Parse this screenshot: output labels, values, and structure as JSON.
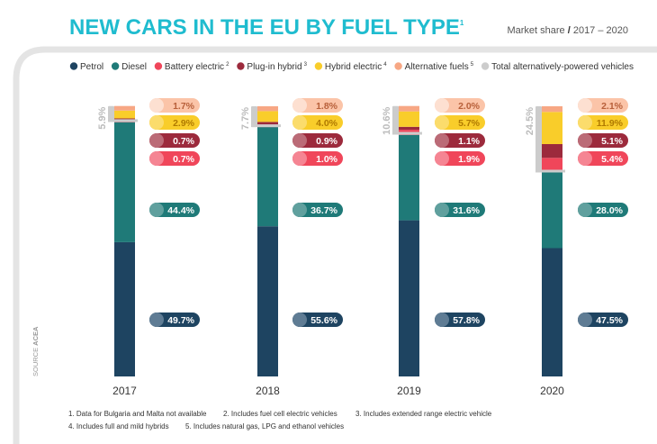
{
  "chart_data": {
    "type": "bar",
    "stacked": true,
    "title": "NEW CARS IN THE EU BY FUEL TYPE",
    "title_note": "1",
    "subtitle_lead": "Market share",
    "subtitle_sep": "/",
    "subtitle_range": "2017 – 2020",
    "unit": "%",
    "categories": [
      "2017",
      "2018",
      "2019",
      "2020"
    ],
    "series": [
      {
        "name": "Petrol",
        "note": "",
        "color": "#1e4461",
        "values": [
          49.7,
          55.6,
          57.8,
          47.5
        ]
      },
      {
        "name": "Diesel",
        "note": "",
        "color": "#1f7a78",
        "values": [
          44.4,
          36.7,
          31.6,
          28.0
        ]
      },
      {
        "name": "Battery electric",
        "note": "2",
        "color": "#f0465a",
        "values": [
          0.7,
          1.0,
          1.9,
          5.4
        ]
      },
      {
        "name": "Plug-in hybrid",
        "note": "3",
        "color": "#9c2a3c",
        "values": [
          0.7,
          0.9,
          1.1,
          5.1
        ]
      },
      {
        "name": "Hybrid electric",
        "note": "4",
        "color": "#f9cd2a",
        "values": [
          2.9,
          4.0,
          5.7,
          11.9
        ]
      },
      {
        "name": "Alternative fuels",
        "note": "5",
        "color": "#f7a784",
        "values": [
          1.7,
          1.8,
          2.0,
          2.1
        ]
      }
    ],
    "total_alt": {
      "name": "Total alternatively-powered vehicles",
      "color": "#cccccc",
      "values": [
        5.9,
        7.7,
        10.6,
        24.5
      ]
    },
    "pill_colors": {
      "Petrol": {
        "bg": "#1e4461",
        "dot": "#5f7c94"
      },
      "Diesel": {
        "bg": "#1f7a78",
        "dot": "#60a09e"
      },
      "Battery electric": {
        "bg": "#f0465a",
        "dot": "#f58593"
      },
      "Plug-in hybrid": {
        "bg": "#9c2a3c",
        "dot": "#bb6b77"
      },
      "Hybrid electric": {
        "bg": "#f9cd2a",
        "dot": "#fbdc6c"
      },
      "Alternative fuels": {
        "bg": "#fbc4a8",
        "dot": "#fde0d1"
      }
    }
  },
  "source_label": "SOURCE",
  "source_name": "ACEA",
  "footnotes": [
    "1. Data for Bulgaria and Malta not available",
    "2. Includes fuel cell electric vehicles",
    "3. Includes extended range electric vehicle",
    "4. Includes full and mild hybrids",
    "5. Includes natural gas, LPG and ethanol vehicles"
  ],
  "colors": {
    "title": "#1fbccf",
    "text": "#333333",
    "frame": "#e4e4e4"
  }
}
